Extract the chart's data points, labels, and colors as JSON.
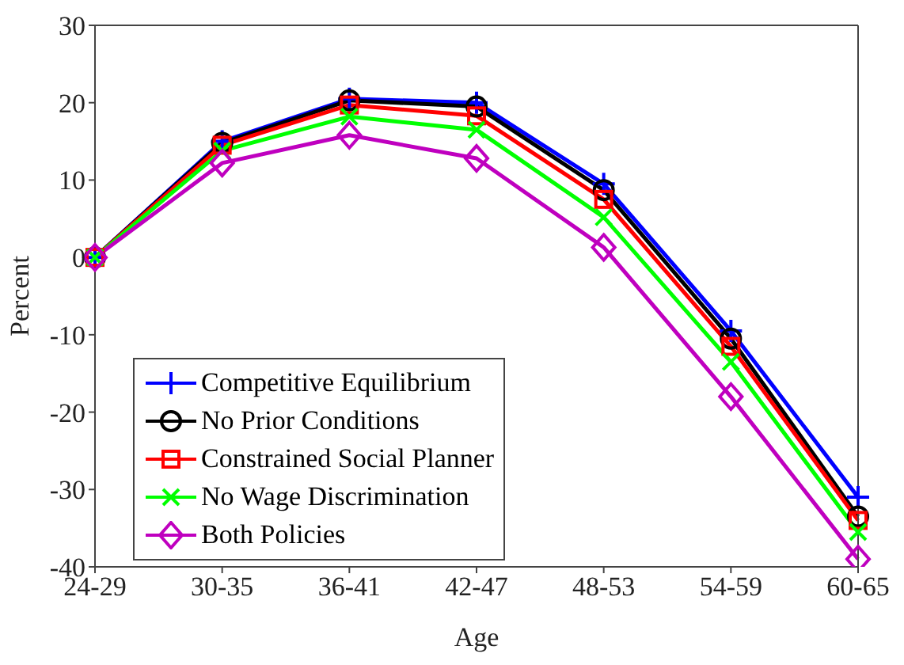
{
  "chart_data": {
    "type": "line",
    "xlabel": "Age",
    "ylabel": "Percent",
    "categories": [
      "24-29",
      "30-35",
      "36-41",
      "42-47",
      "48-53",
      "54-59",
      "60-65"
    ],
    "ylim": [
      -40,
      30
    ],
    "yticks": [
      -40,
      -30,
      -20,
      -10,
      0,
      10,
      20,
      30
    ],
    "grid": false,
    "legend": "bottom left",
    "series": [
      {
        "name": "Competitive Equilibrium",
        "color": "#0000ff",
        "marker": "cross",
        "values": [
          0,
          15,
          20.5,
          20,
          9.5,
          -9.5,
          -31
        ]
      },
      {
        "name": "No Prior Conditions",
        "color": "#000000",
        "marker": "circle",
        "values": [
          0,
          14.8,
          20.3,
          19.5,
          8.7,
          -10.5,
          -33.5
        ]
      },
      {
        "name": "Constrained Social Planner",
        "color": "#ff0000",
        "marker": "square",
        "values": [
          0,
          14.5,
          19.7,
          18.3,
          7.5,
          -11.5,
          -34
        ]
      },
      {
        "name": "No Wage Discrimination",
        "color": "#00ff00",
        "marker": "x",
        "values": [
          0,
          13.8,
          18.2,
          16.5,
          5.2,
          -13.5,
          -35.5
        ]
      },
      {
        "name": "Both Policies",
        "color": "#bf00bf",
        "marker": "diamond",
        "values": [
          0,
          12.2,
          15.8,
          12.8,
          1.3,
          -18,
          -39
        ]
      }
    ]
  }
}
